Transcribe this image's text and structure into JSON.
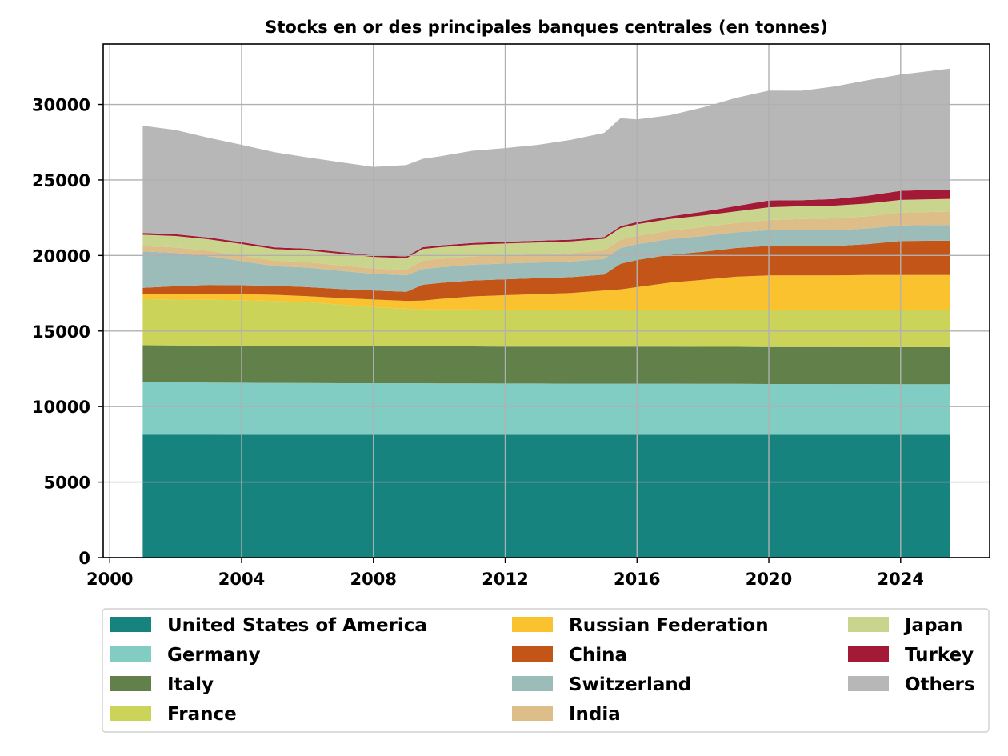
{
  "chart_data": {
    "type": "area",
    "stacked": true,
    "title": "Stocks en or des principales banques centrales (en tonnes)",
    "xlabel": "",
    "ylabel": "",
    "xlim": [
      1999.8,
      2026.7
    ],
    "ylim": [
      0,
      34000
    ],
    "grid": true,
    "legend_placement": "bottom",
    "x_ticks": [
      2000,
      2004,
      2008,
      2012,
      2016,
      2020,
      2024
    ],
    "y_ticks": [
      0,
      5000,
      10000,
      15000,
      20000,
      25000,
      30000
    ],
    "x": [
      2001,
      2002,
      2003,
      2004,
      2005,
      2006,
      2007,
      2008,
      2009,
      2009.5,
      2010,
      2011,
      2012,
      2013,
      2014,
      2015,
      2015.5,
      2016,
      2017,
      2018,
      2019,
      2020,
      2021,
      2022,
      2023,
      2024,
      2025.5
    ],
    "series": [
      {
        "name": "United States of America",
        "color": "#17837e",
        "values": [
          8140,
          8140,
          8140,
          8135,
          8135,
          8135,
          8135,
          8135,
          8135,
          8133,
          8133,
          8133,
          8133,
          8133,
          8133,
          8133,
          8133,
          8133,
          8133,
          8133,
          8133,
          8133,
          8133,
          8133,
          8133,
          8133,
          8133
        ]
      },
      {
        "name": "Germany",
        "color": "#82cdc3",
        "values": [
          3470,
          3460,
          3450,
          3440,
          3430,
          3420,
          3410,
          3410,
          3410,
          3410,
          3400,
          3400,
          3390,
          3390,
          3380,
          3380,
          3380,
          3380,
          3380,
          3370,
          3370,
          3360,
          3360,
          3355,
          3352,
          3351,
          3350
        ]
      },
      {
        "name": "Italy",
        "color": "#61804a",
        "values": [
          2450,
          2450,
          2450,
          2450,
          2450,
          2450,
          2450,
          2450,
          2450,
          2450,
          2450,
          2450,
          2450,
          2450,
          2450,
          2450,
          2450,
          2450,
          2450,
          2450,
          2450,
          2450,
          2450,
          2450,
          2450,
          2450,
          2450
        ]
      },
      {
        "name": "France",
        "color": "#cbd459",
        "values": [
          3050,
          3030,
          3025,
          3020,
          2980,
          2900,
          2750,
          2590,
          2480,
          2440,
          2440,
          2440,
          2440,
          2440,
          2440,
          2440,
          2440,
          2440,
          2440,
          2440,
          2440,
          2440,
          2440,
          2440,
          2440,
          2440,
          2440
        ]
      },
      {
        "name": "Russian Federation",
        "color": "#fbc22f",
        "values": [
          360,
          390,
          390,
          390,
          400,
          400,
          440,
          500,
          520,
          580,
          700,
          870,
          960,
          1030,
          1110,
          1280,
          1350,
          1500,
          1800,
          2000,
          2200,
          2300,
          2300,
          2300,
          2330,
          2330,
          2330
        ]
      },
      {
        "name": "China",
        "color": "#c35518",
        "values": [
          395,
          500,
          600,
          600,
          600,
          600,
          600,
          600,
          600,
          1054,
          1054,
          1054,
          1054,
          1054,
          1054,
          1054,
          1700,
          1800,
          1850,
          1850,
          1900,
          1950,
          1950,
          1950,
          2050,
          2250,
          2280
        ]
      },
      {
        "name": "Switzerland",
        "color": "#9cbcba",
        "values": [
          2400,
          2200,
          1900,
          1600,
          1300,
          1300,
          1200,
          1100,
          1100,
          1040,
          1040,
          1040,
          1040,
          1040,
          1040,
          1040,
          1040,
          1040,
          1040,
          1040,
          1040,
          1040,
          1040,
          1040,
          1040,
          1040,
          1040
        ]
      },
      {
        "name": "India",
        "color": "#ddbd88",
        "values": [
          360,
          360,
          360,
          360,
          360,
          360,
          360,
          360,
          360,
          560,
          560,
          560,
          560,
          560,
          560,
          560,
          560,
          560,
          560,
          600,
          620,
          670,
          740,
          790,
          800,
          840,
          880
        ]
      },
      {
        "name": "Japan",
        "color": "#c9d58d",
        "values": [
          750,
          760,
          760,
          765,
          765,
          765,
          765,
          765,
          765,
          765,
          765,
          765,
          765,
          765,
          765,
          765,
          765,
          765,
          765,
          765,
          765,
          846,
          846,
          846,
          846,
          846,
          846
        ]
      },
      {
        "name": "Turkey",
        "color": "#a31a37",
        "values": [
          120,
          116,
          116,
          116,
          116,
          116,
          116,
          116,
          116,
          116,
          116,
          116,
          116,
          116,
          116,
          116,
          120,
          150,
          170,
          250,
          350,
          450,
          400,
          440,
          520,
          600,
          620
        ]
      },
      {
        "name": "Others",
        "color": "#b7b7b7",
        "values": [
          7100,
          6900,
          6600,
          6450,
          6300,
          6050,
          5950,
          5840,
          6050,
          5850,
          5900,
          6100,
          6200,
          6350,
          6610,
          6900,
          7150,
          6790,
          6700,
          6900,
          7160,
          7280,
          7250,
          7450,
          7640,
          7700,
          8000
        ]
      }
    ]
  }
}
